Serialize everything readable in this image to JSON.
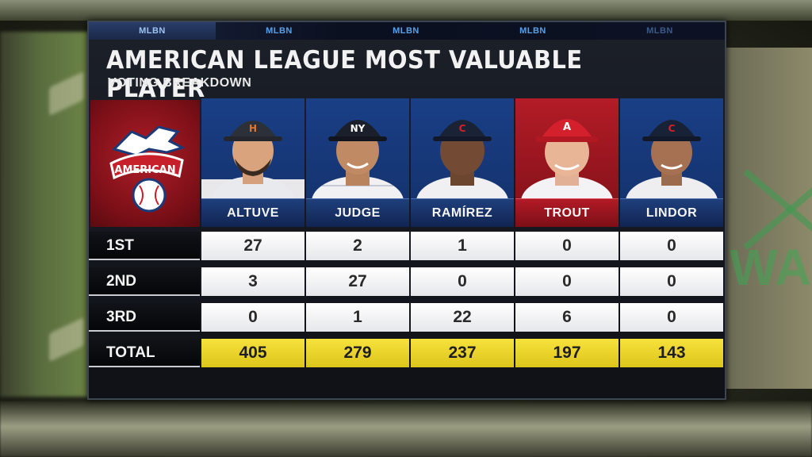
{
  "network_tabs": [
    "MLBN",
    "MLBN",
    "MLBN",
    "MLBN",
    "MLBN"
  ],
  "title": "AMERICAN LEAGUE MOST VALUABLE PLAYER",
  "subtitle": "VOTING BREAKDOWN",
  "logo": {
    "text": "AMERICAN",
    "icon": "american-league-eagle-logo"
  },
  "players": [
    {
      "name": "ALTUVE",
      "cap": "H",
      "theme": "blue"
    },
    {
      "name": "JUDGE",
      "cap": "NY",
      "theme": "blue"
    },
    {
      "name": "RAMÍREZ",
      "cap": "C",
      "theme": "blue"
    },
    {
      "name": "TROUT",
      "cap": "A",
      "theme": "red"
    },
    {
      "name": "LINDOR",
      "cap": "C",
      "theme": "blue"
    }
  ],
  "rows": [
    {
      "label": "1ST",
      "values": [
        "27",
        "2",
        "1",
        "0",
        "0"
      ]
    },
    {
      "label": "2ND",
      "values": [
        "3",
        "27",
        "0",
        "0",
        "0"
      ]
    },
    {
      "label": "3RD",
      "values": [
        "0",
        "1",
        "22",
        "6",
        "0"
      ]
    },
    {
      "label": "TOTAL",
      "values": [
        "405",
        "279",
        "237",
        "197",
        "143"
      ]
    }
  ],
  "colors": {
    "total_highlight": "#f2dc2e",
    "player_blue": "#1a3f86",
    "player_red": "#b31c26"
  },
  "background_text": "WA"
}
